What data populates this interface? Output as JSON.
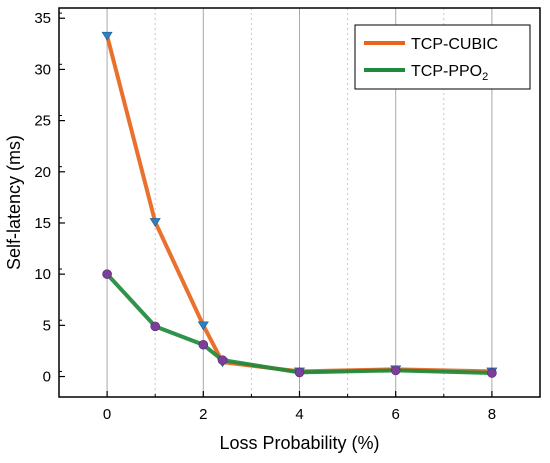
{
  "chart_data": {
    "type": "line",
    "title": "",
    "xlabel": "Loss Probability (%)",
    "ylabel": "Self-latency (ms)",
    "xlim": [
      -1,
      9
    ],
    "ylim": [
      -2,
      36
    ],
    "xticks": [
      0,
      2,
      4,
      6,
      8
    ],
    "yticks": [
      0,
      5,
      10,
      15,
      20,
      25,
      30,
      35
    ],
    "x_minor_ticks": [
      -1,
      1,
      3,
      5,
      7,
      9
    ],
    "grid": "vertical",
    "legend_position": "top-right",
    "series": [
      {
        "name": "TCP-CUBIC",
        "color": "#e8641c",
        "marker": "triangle-down",
        "marker_color": "#2f7fc1",
        "x": [
          0,
          1,
          2,
          2.4,
          4,
          6,
          8
        ],
        "y": [
          33.3,
          15.1,
          5.0,
          1.4,
          0.5,
          0.7,
          0.5
        ]
      },
      {
        "name": "TCP-PPO",
        "name_subscript": "2",
        "color": "#1e8a3c",
        "marker": "circle",
        "marker_color": "#7b3f99",
        "x": [
          0,
          1,
          2,
          2.4,
          4,
          6,
          8
        ],
        "y": [
          10.0,
          4.9,
          3.1,
          1.6,
          0.4,
          0.6,
          0.35
        ]
      }
    ]
  }
}
